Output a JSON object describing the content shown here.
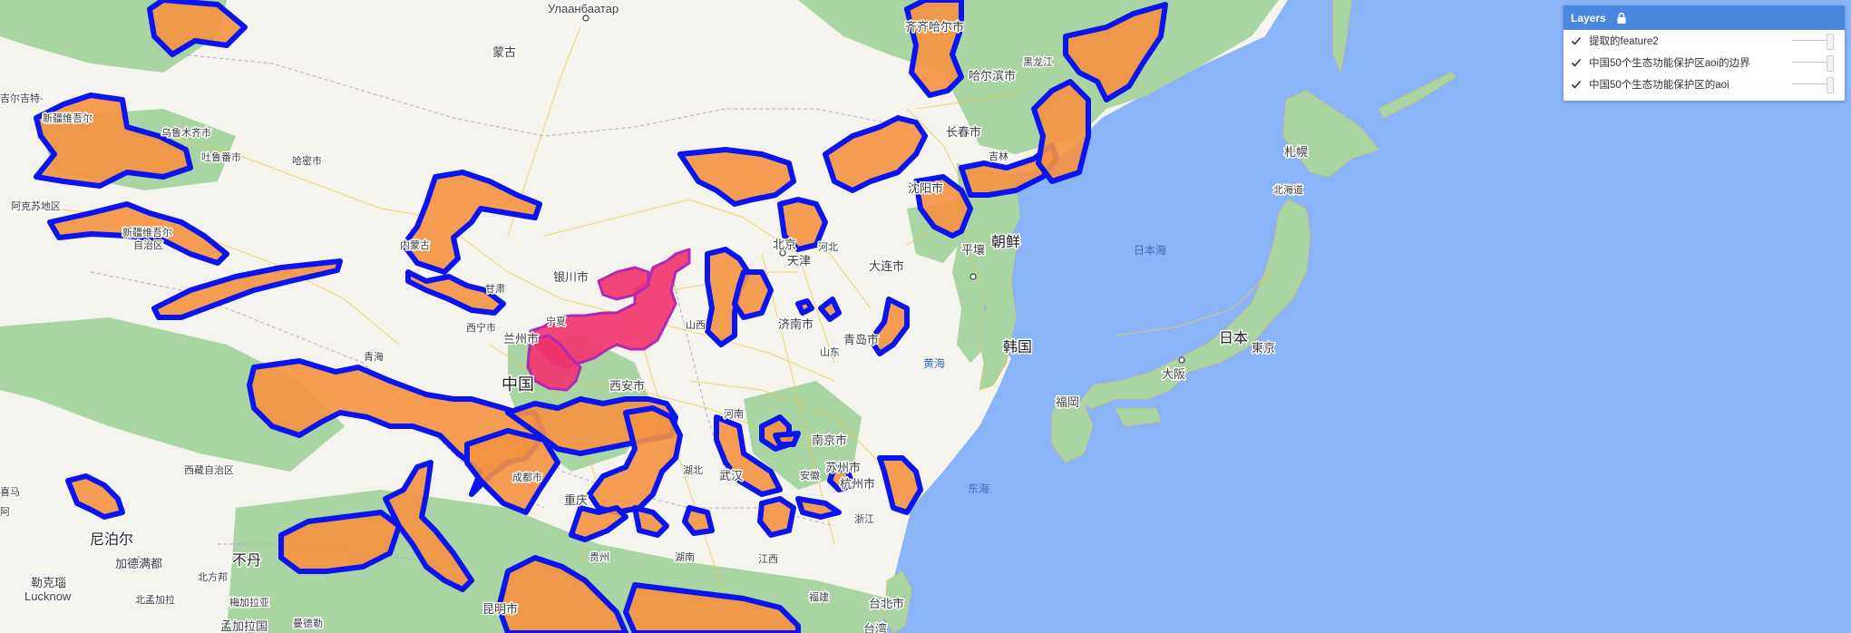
{
  "map": {
    "labels": {
      "ulaanbaatar": "Улаанбаатар",
      "mongolia": "蒙古",
      "harbin_top": "齐齐哈尔市",
      "heilongjiang": "黑龙江",
      "harbin": "哈尔滨市",
      "changchun": "长春市",
      "jilin": "吉林",
      "shenyang": "沈阳市",
      "pyongyang": "平壤",
      "north_korea": "朝鲜",
      "dalian": "大连市",
      "south_korea": "韩国",
      "urumqi": "乌鲁木齐市",
      "turpan": "吐鲁番市",
      "hami": "哈密市",
      "xinjiang_top": "新疆维吾尔",
      "aksu": "阿克苏地区",
      "xinjiang": "新疆维吾尔\n自治区",
      "inner_mongolia": "内蒙古",
      "yinchuan": "银川市",
      "ningxia": "宁夏",
      "gansu": "甘肃",
      "xining": "西宁市",
      "lanzhou": "兰州市",
      "qinghai": "青海",
      "china": "中国",
      "xian": "西安市",
      "shanxi": "山西",
      "beijing": "北京",
      "tianjin": "天津",
      "hebei": "河北",
      "jinan": "济南市",
      "shandong": "山东",
      "qingdao": "青岛市",
      "henan": "河南",
      "tibet": "西藏自治区",
      "chengdu": "成都市",
      "chongqing": "重庆",
      "hubei": "湖北",
      "wuhan": "武汉",
      "nanjing": "南京市",
      "suzhou": "苏州市",
      "anhui": "安徽",
      "hangzhou": "杭州市",
      "zhejiang": "浙江",
      "jiangxi": "江西",
      "hunan": "湖南",
      "guizhou": "贵州",
      "kunming": "昆明市",
      "fujian": "福建",
      "taipei": "台北市",
      "taiwan": "台湾",
      "nepal": "尼泊尔",
      "kathmandu": "加德满都",
      "lucknow_cn": "勒克瑙",
      "lucknow": "Lucknow",
      "bhutan": "不丹",
      "north_bengal": "北孟加拉",
      "meghalaya": "梅加拉亚",
      "north_india": "北方邦",
      "bangladesh": "孟加拉国",
      "mandalay": "曼德勒",
      "sapporo": "札幌",
      "hokkaido": "北海道",
      "japan": "日本",
      "tokyo": "東京",
      "osaka": "大阪",
      "fukuoka": "福岡",
      "sea_japan": "日本海",
      "sea_yellow": "黄海",
      "sea_east": "东海",
      "gilgit": "吉尔吉特-",
      "himachal": "喜马",
      "amritsar": "阿"
    }
  },
  "colors": {
    "land": "#f5f3ee",
    "green": "#a8d5a2",
    "water": "#8ab4f8",
    "aoi_fill": "#f4923f",
    "aoi_stroke": "#0a14ee",
    "selected_fill": "#f2336e"
  },
  "layers_panel": {
    "title": "Layers",
    "lock_icon": "lock-icon",
    "items": [
      {
        "label": "提取的feature2",
        "checked": true
      },
      {
        "label": "中国50个生态功能保护区aoi的边界",
        "checked": true
      },
      {
        "label": "中国50个生态功能保护区的aoi",
        "checked": true
      }
    ]
  }
}
